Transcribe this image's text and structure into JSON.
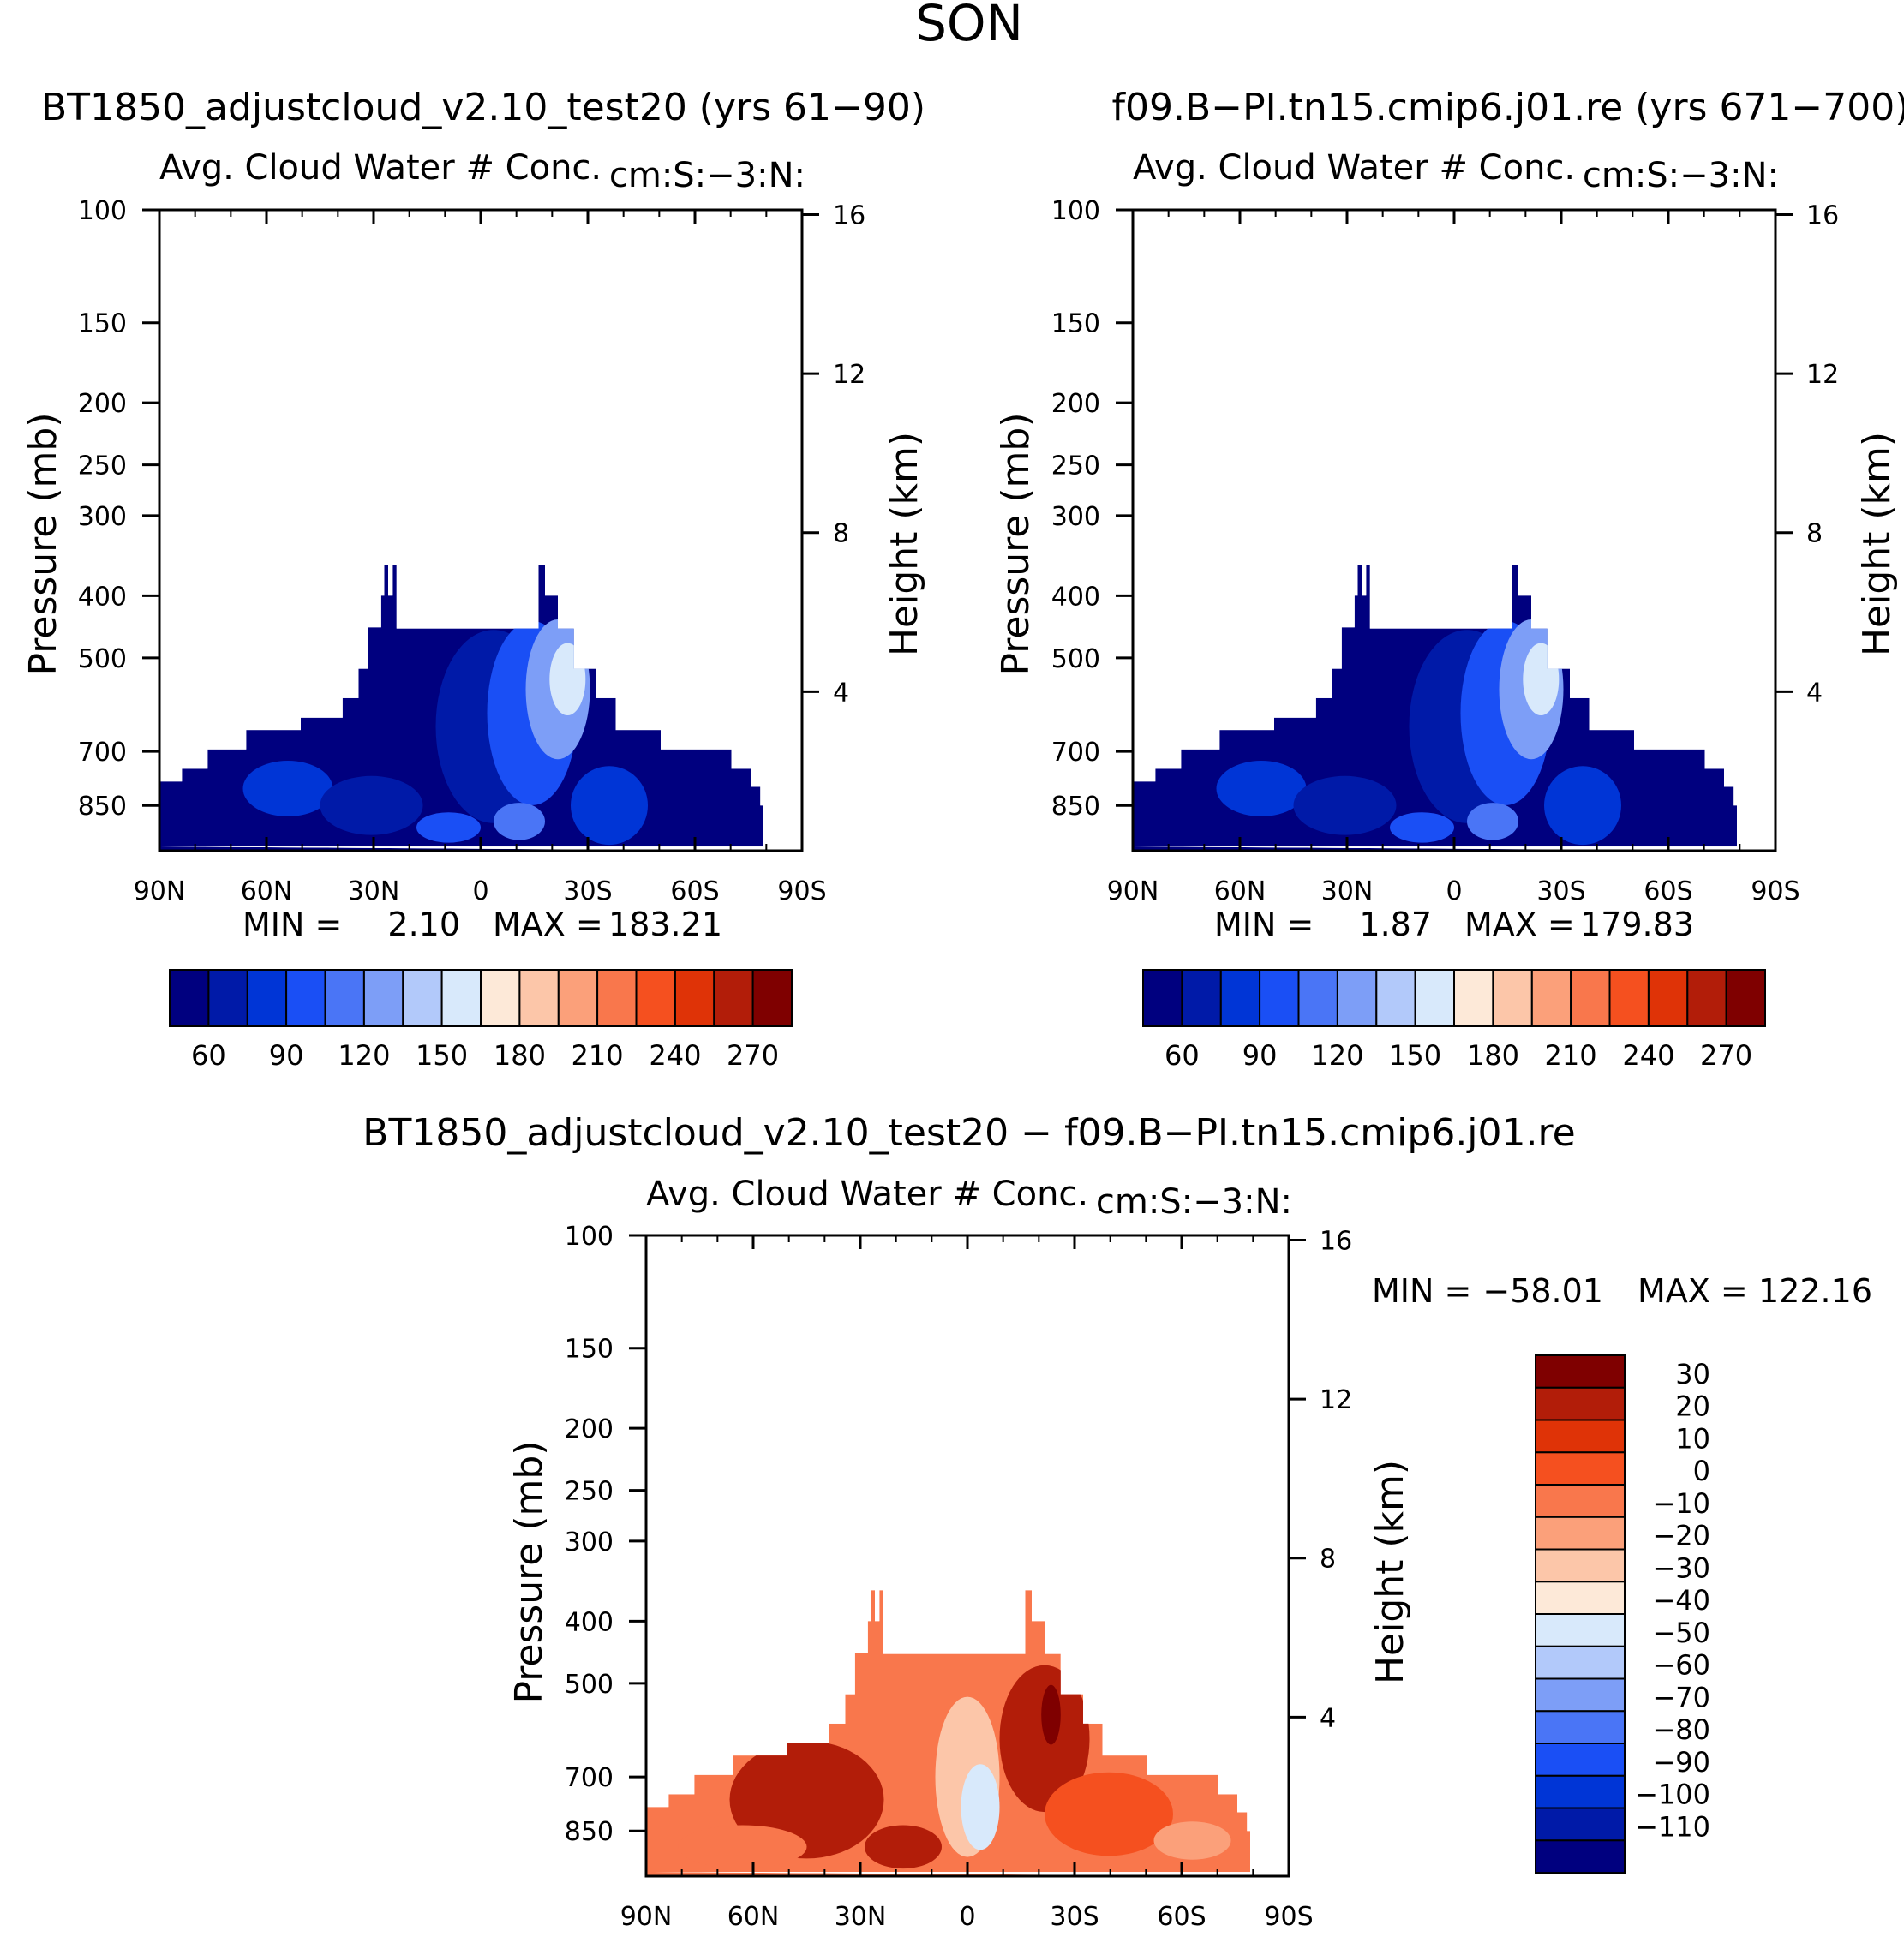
{
  "figure_title": "SON",
  "chart_data": [
    {
      "type": "heatmap",
      "id": "case",
      "title": "BT1850_adjustcloud_v2.10_test20 (yrs 61−90)",
      "subtitle_left": "Avg. Cloud Water # Conc.",
      "subtitle_right": "cm:S:−3:N:",
      "ylabel": "Pressure (mb)",
      "ylabel_right": "Height (km)",
      "x_ticks": [
        "90N",
        "60N",
        "30N",
        "0",
        "30S",
        "60S",
        "90S"
      ],
      "y_ticks": [
        100,
        150,
        200,
        250,
        300,
        400,
        500,
        700,
        850
      ],
      "y_ticks_right": [
        16,
        12,
        8,
        4
      ],
      "ylim": [
        100,
        1000
      ],
      "min_label": "MIN =",
      "min_value": "2.10",
      "max_label": "MAX =",
      "max_value": "183.21",
      "levels": [
        45,
        60,
        75,
        90,
        105,
        120,
        135,
        150,
        165,
        180,
        195,
        210,
        225,
        240,
        255,
        270
      ],
      "colorbar_labels": [
        "60",
        "90",
        "120",
        "150",
        "180",
        "210",
        "240",
        "270"
      ],
      "colors": [
        "#00007f",
        "#001aa8",
        "#0035d6",
        "#1a4ff5",
        "#4a75f6",
        "#7d9ef7",
        "#b2c9fa",
        "#d8e9fb",
        "#fde9d8",
        "#fcc6a9",
        "#fba07a",
        "#f9774c",
        "#f5501f",
        "#df3307",
        "#b21d09",
        "#7f0000"
      ]
    },
    {
      "type": "heatmap",
      "id": "control",
      "title": "f09.B−PI.tn15.cmip6.j01.re (yrs 671−700)",
      "subtitle_left": "Avg. Cloud Water # Conc.",
      "subtitle_right": "cm:S:−3:N:",
      "ylabel": "Pressure (mb)",
      "ylabel_right": "Height (km)",
      "x_ticks": [
        "90N",
        "60N",
        "30N",
        "0",
        "30S",
        "60S",
        "90S"
      ],
      "y_ticks": [
        100,
        150,
        200,
        250,
        300,
        400,
        500,
        700,
        850
      ],
      "y_ticks_right": [
        16,
        12,
        8,
        4
      ],
      "ylim": [
        100,
        1000
      ],
      "min_label": "MIN =",
      "min_value": "1.87",
      "max_label": "MAX =",
      "max_value": "179.83",
      "levels": [
        45,
        60,
        75,
        90,
        105,
        120,
        135,
        150,
        165,
        180,
        195,
        210,
        225,
        240,
        255,
        270
      ],
      "colorbar_labels": [
        "60",
        "90",
        "120",
        "150",
        "180",
        "210",
        "240",
        "270"
      ],
      "colors": [
        "#00007f",
        "#001aa8",
        "#0035d6",
        "#1a4ff5",
        "#4a75f6",
        "#7d9ef7",
        "#b2c9fa",
        "#d8e9fb",
        "#fde9d8",
        "#fcc6a9",
        "#fba07a",
        "#f9774c",
        "#f5501f",
        "#df3307",
        "#b21d09",
        "#7f0000"
      ]
    },
    {
      "type": "heatmap",
      "id": "difference",
      "title": "BT1850_adjustcloud_v2.10_test20 − f09.B−PI.tn15.cmip6.j01.re",
      "subtitle_left": "Avg. Cloud Water # Conc.",
      "subtitle_right": "cm:S:−3:N:",
      "ylabel": "Pressure (mb)",
      "ylabel_right": "Height (km)",
      "x_ticks": [
        "90N",
        "60N",
        "30N",
        "0",
        "30S",
        "60S",
        "90S"
      ],
      "y_ticks": [
        100,
        150,
        200,
        250,
        300,
        400,
        500,
        700,
        850
      ],
      "y_ticks_right": [
        16,
        12,
        8,
        4
      ],
      "ylim": [
        100,
        1000
      ],
      "min_label": "MIN =",
      "min_value": "−58.01",
      "max_label": "MAX =",
      "max_value": "122.16",
      "levels": [
        -110,
        -100,
        -90,
        -80,
        -70,
        -60,
        -50,
        -40,
        -30,
        -20,
        -10,
        0,
        10,
        20,
        30
      ],
      "colorbar_labels": [
        "30",
        "20",
        "10",
        "0",
        "−10",
        "−20",
        "−30",
        "−40",
        "−50",
        "−60",
        "−70",
        "−80",
        "−90",
        "−100",
        "−110"
      ],
      "colors": [
        "#7f0000",
        "#b21d09",
        "#df3307",
        "#f5501f",
        "#f9774c",
        "#fba07a",
        "#fcc6a9",
        "#fde9d8",
        "#d8e9fb",
        "#b2c9fa",
        "#7d9ef7",
        "#4a75f6",
        "#1a4ff5",
        "#0035d6",
        "#001aa8",
        "#00007f"
      ]
    }
  ]
}
